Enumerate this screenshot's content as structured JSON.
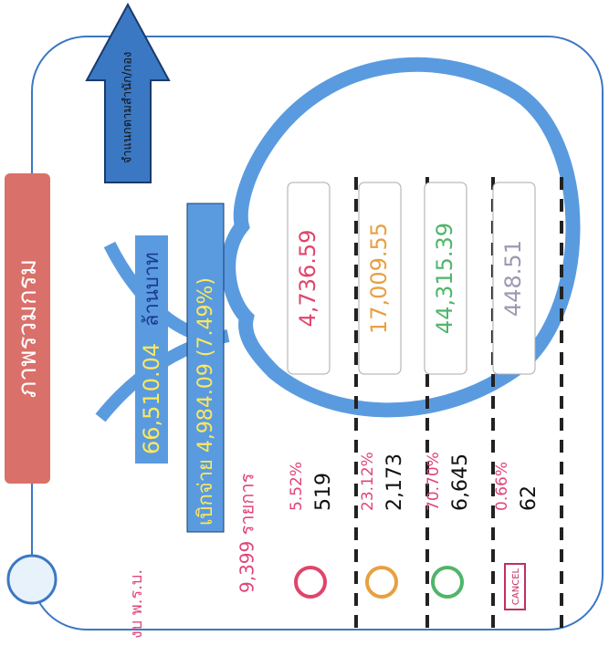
{
  "header": {
    "title": "ภาพรวมกรม",
    "arrow_label": "จำแนกตามสำนัก/กอง"
  },
  "summary": {
    "budget_label": "งบ พ.ร.บ.",
    "budget": "66,510.04",
    "unit": "ล้านบาท",
    "disbursed": "เบิกจ่าย 4,984.09 (7.49%)",
    "items": "9,399 รายการ"
  },
  "rows": [
    {
      "percent": "5.52%",
      "count": "519",
      "amount": "4,736.59"
    },
    {
      "percent": "23.12%",
      "count": "2,173",
      "amount": "17,009.55"
    },
    {
      "percent": "70.70%",
      "count": "6,645",
      "amount": "44,315.39"
    },
    {
      "percent": "0.66%",
      "count": "62",
      "amount": "448.51",
      "stamp": "CANCEL"
    }
  ]
}
